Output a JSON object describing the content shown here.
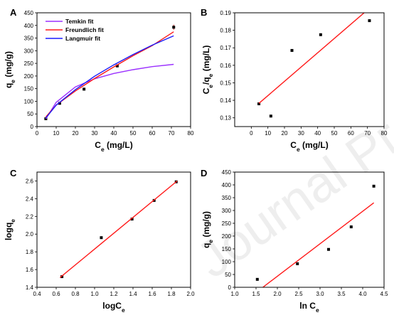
{
  "watermark": "Journal Pre-proof",
  "chart_data": [
    {
      "panel": "A",
      "type": "scatter",
      "xlabel": "C_e (mg/L)",
      "ylabel": "q_e (mg/g)",
      "xlim": [
        0,
        80
      ],
      "ylim": [
        0,
        450
      ],
      "xticks": [
        0,
        10,
        20,
        30,
        40,
        50,
        60,
        70,
        80
      ],
      "yticks": [
        0,
        50,
        100,
        150,
        200,
        250,
        300,
        350,
        400,
        450
      ],
      "legend": "top-left",
      "series": [
        {
          "kind": "points",
          "color": "#000000",
          "x": [
            4.6,
            11.8,
            24.5,
            41.8,
            71.2
          ],
          "y": [
            31,
            92,
            148,
            240,
            393
          ],
          "err": [
            4,
            4,
            4,
            6,
            10
          ]
        },
        {
          "kind": "line",
          "name": "Temkin fit",
          "color": "#9b30ff",
          "x": [
            4.6,
            10,
            20,
            30,
            40,
            50,
            60,
            71.2
          ],
          "y": [
            30,
            96,
            157,
            189,
            210,
            225,
            237,
            246
          ]
        },
        {
          "kind": "line",
          "name": "Freundlich fit",
          "color": "#ff1a1a",
          "x": [
            4.6,
            10,
            20,
            30,
            40,
            50,
            60,
            71.2
          ],
          "y": [
            38,
            85,
            141,
            190,
            236,
            280,
            320,
            375
          ]
        },
        {
          "kind": "line",
          "name": "Langmuir fit",
          "color": "#1a1aff",
          "x": [
            4.6,
            10,
            20,
            30,
            40,
            50,
            60,
            71.2
          ],
          "y": [
            34,
            85,
            146,
            199,
            244,
            285,
            322,
            359
          ]
        }
      ]
    },
    {
      "panel": "B",
      "type": "scatter",
      "xlabel": "C_e (mg/L)",
      "ylabel": "C_e/q_e (mg/L)",
      "xlim": [
        -10,
        80
      ],
      "ylim": [
        0.125,
        0.19
      ],
      "xticks": [
        0,
        10,
        20,
        30,
        40,
        50,
        60,
        70,
        80
      ],
      "yticks": [
        0.13,
        0.14,
        0.15,
        0.16,
        0.17,
        0.18,
        0.19
      ],
      "series": [
        {
          "kind": "points",
          "color": "#000000",
          "x": [
            4.6,
            11.8,
            24.5,
            41.8,
            71.2
          ],
          "y": [
            0.138,
            0.131,
            0.1685,
            0.1775,
            0.1855
          ]
        },
        {
          "kind": "line",
          "color": "#ff1a1a",
          "x": [
            4.6,
            68.0
          ],
          "y": [
            0.1383,
            0.19
          ]
        }
      ]
    },
    {
      "panel": "C",
      "type": "scatter",
      "xlabel": "logC_e",
      "ylabel": "logq_e",
      "xlim": [
        0.4,
        2.0
      ],
      "ylim": [
        1.4,
        2.7
      ],
      "xticks": [
        0.4,
        0.6,
        0.8,
        1.0,
        1.2,
        1.4,
        1.6,
        1.8,
        2.0
      ],
      "yticks": [
        1.4,
        1.6,
        1.8,
        2.0,
        2.2,
        2.4,
        2.6
      ],
      "series": [
        {
          "kind": "points",
          "color": "#000000",
          "x": [
            0.66,
            1.07,
            1.39,
            1.62,
            1.85
          ],
          "y": [
            1.52,
            1.96,
            2.17,
            2.38,
            2.59
          ]
        },
        {
          "kind": "line",
          "color": "#ff1a1a",
          "x": [
            0.64,
            1.86
          ],
          "y": [
            1.51,
            2.6
          ]
        }
      ]
    },
    {
      "panel": "D",
      "type": "scatter",
      "xlabel": "ln C_e",
      "ylabel": "q_e (mg/g)",
      "xlim": [
        1.0,
        4.5
      ],
      "ylim": [
        0,
        450
      ],
      "xticks": [
        1.0,
        1.5,
        2.0,
        2.5,
        3.0,
        3.5,
        4.0,
        4.5
      ],
      "yticks": [
        0,
        50,
        100,
        150,
        200,
        250,
        300,
        350,
        400,
        450
      ],
      "series": [
        {
          "kind": "points",
          "color": "#000000",
          "x": [
            1.53,
            2.47,
            3.2,
            3.73,
            4.26
          ],
          "y": [
            31,
            92,
            148,
            236,
            395
          ]
        },
        {
          "kind": "line",
          "color": "#ff1a1a",
          "x": [
            1.66,
            4.26
          ],
          "y": [
            0,
            330
          ]
        }
      ]
    }
  ]
}
